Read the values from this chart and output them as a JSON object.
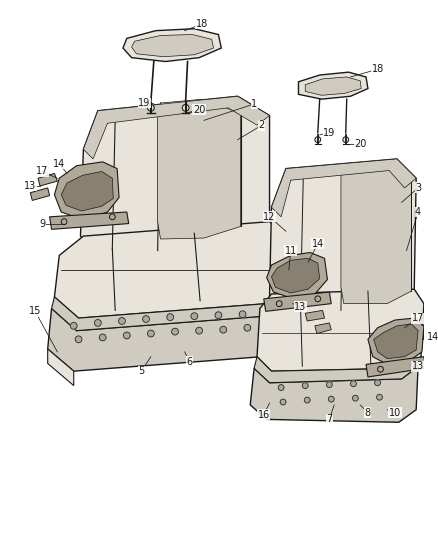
{
  "background_color": "#ffffff",
  "figure_width": 4.38,
  "figure_height": 5.33,
  "dpi": 100,
  "line_color": "#1a1a1a",
  "seat_fill": "#e8e4dc",
  "seat_dark": "#d0cbc0",
  "bracket_fill": "#b0a898",
  "bracket_dark": "#888070",
  "label_fontsize": 7.0,
  "label_color": "#1a1a1a"
}
